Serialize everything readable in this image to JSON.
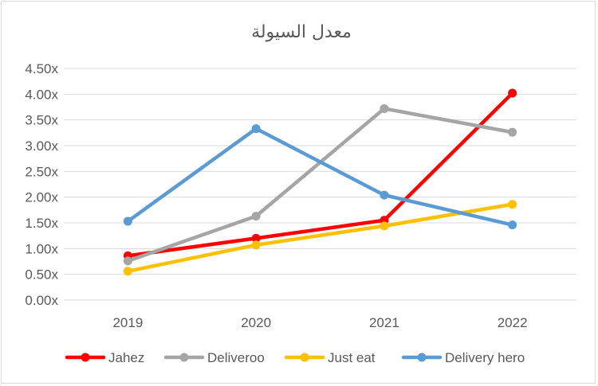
{
  "chart_data": {
    "type": "line",
    "title": "معدل السيولة",
    "xlabel": "",
    "ylabel": "",
    "categories": [
      "2019",
      "2020",
      "2021",
      "2022"
    ],
    "ylim": [
      0,
      4.5
    ],
    "ytick_step": 0.5,
    "yticks": [
      "0.00x",
      "0.50x",
      "1.00x",
      "1.50x",
      "2.00x",
      "2.50x",
      "3.00x",
      "3.50x",
      "4.00x",
      "4.50x"
    ],
    "grid": "horizontal",
    "legend_position": "bottom",
    "series": [
      {
        "name": "Jahez",
        "color": "#ff0000",
        "values": [
          0.86,
          1.2,
          1.55,
          4.02
        ]
      },
      {
        "name": "Deliveroo",
        "color": "#a5a5a5",
        "values": [
          0.76,
          1.63,
          3.72,
          3.26
        ]
      },
      {
        "name": "Just eat",
        "color": "#ffc000",
        "values": [
          0.56,
          1.07,
          1.44,
          1.86
        ]
      },
      {
        "name": "Delivery hero",
        "color": "#5b9bd5",
        "values": [
          1.53,
          3.33,
          2.04,
          1.46
        ]
      }
    ]
  }
}
